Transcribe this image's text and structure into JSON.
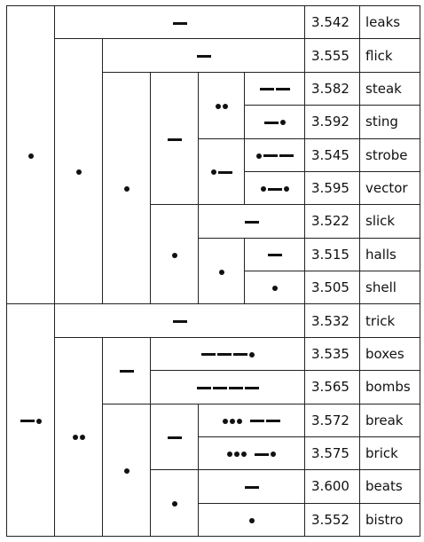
{
  "rows": [
    {
      "score": "3.542",
      "word": "leaks"
    },
    {
      "score": "3.555",
      "word": "flick"
    },
    {
      "score": "3.582",
      "word": "steak"
    },
    {
      "score": "3.592",
      "word": "sting"
    },
    {
      "score": "3.545",
      "word": "strobe"
    },
    {
      "score": "3.595",
      "word": "vector"
    },
    {
      "score": "3.522",
      "word": "slick"
    },
    {
      "score": "3.515",
      "word": "halls"
    },
    {
      "score": "3.505",
      "word": "shell"
    },
    {
      "score": "3.532",
      "word": "trick"
    },
    {
      "score": "3.535",
      "word": "boxes"
    },
    {
      "score": "3.565",
      "word": "bombs"
    },
    {
      "score": "3.572",
      "word": "break"
    },
    {
      "score": "3.575",
      "word": "brick"
    },
    {
      "score": "3.600",
      "word": "beats"
    },
    {
      "score": "3.552",
      "word": "bistro"
    }
  ],
  "codes": {
    "root_a": ".",
    "a_leaf_leaks": "-",
    "a_node": ".",
    "a_leaf_flick": "-",
    "aa_node": ".",
    "aaa_node": "-",
    "aaaa_node": "..",
    "leaf_steak": "--",
    "leaf_sting": "-.",
    "aaab_node": ".-",
    "leaf_strobe": ".--",
    "leaf_vector": ".-.",
    "aab_node": ".",
    "leaf_slick": "-",
    "aaba_node": ".",
    "leaf_halls": "-",
    "leaf_shell": ".",
    "root_b": "-.",
    "b_leaf_trick": "-",
    "b_node": "..",
    "ba_node": "-",
    "leaf_boxes": "---.",
    "leaf_bombs": "----",
    "bb_node": ".",
    "bba_node": "-",
    "leaf_break": "... --",
    "leaf_brick": "... -.",
    "bbb_node": ".",
    "leaf_beats": "-",
    "leaf_bistro": "."
  }
}
